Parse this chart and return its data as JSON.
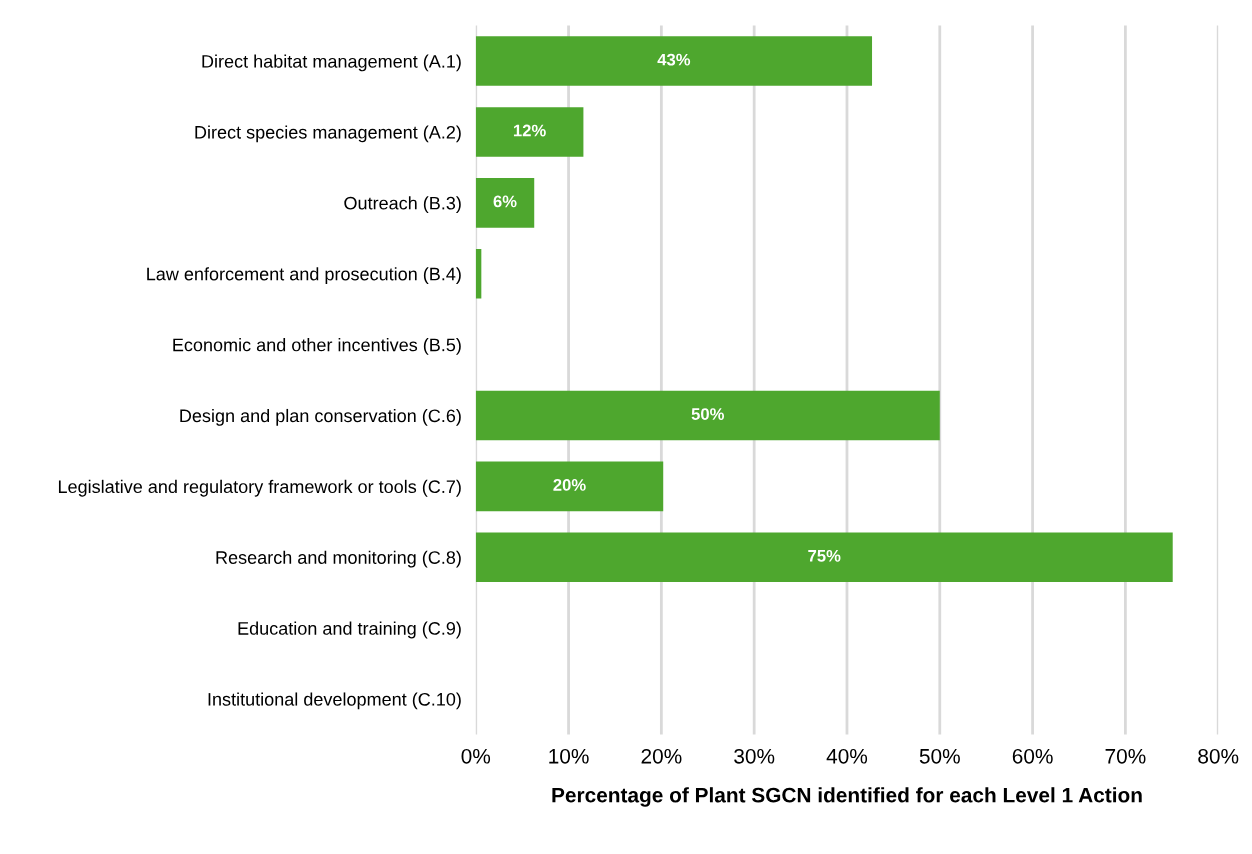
{
  "chart_data": {
    "type": "bar",
    "orientation": "horizontal",
    "categories": [
      "Direct habitat management (A.1)",
      "Direct species management (A.2)",
      "Outreach (B.3)",
      "Law enforcement and prosecution (B.4)",
      "Economic and other incentives (B.5)",
      "Design and plan conservation (C.6)",
      "Legislative and regulatory framework or tools (C.7)",
      "Research and monitoring (C.8)",
      "Education and training (C.9)",
      "Institutional development (C.10)"
    ],
    "values": [
      42.7,
      11.6,
      6.3,
      0.6,
      0,
      50,
      20.2,
      75.1,
      0,
      0
    ],
    "value_labels": [
      "43%",
      "12%",
      "6%",
      null,
      null,
      "50%",
      "20%",
      "75%",
      null,
      null
    ],
    "color": "#4ea72e",
    "xlim": [
      0,
      80
    ],
    "xticks": [
      {
        "value": 0,
        "label": "0%"
      },
      {
        "value": 10,
        "label": "10%"
      },
      {
        "value": 20,
        "label": "20%"
      },
      {
        "value": 30,
        "label": "30%"
      },
      {
        "value": 40,
        "label": "40%"
      },
      {
        "value": 50,
        "label": "50%"
      },
      {
        "value": 60,
        "label": "60%"
      },
      {
        "value": 70,
        "label": "70%"
      },
      {
        "value": 80,
        "label": "80%"
      }
    ],
    "xlabel": "Percentage of Plant SGCN identified for each Level 1 Action",
    "grid": "x"
  }
}
